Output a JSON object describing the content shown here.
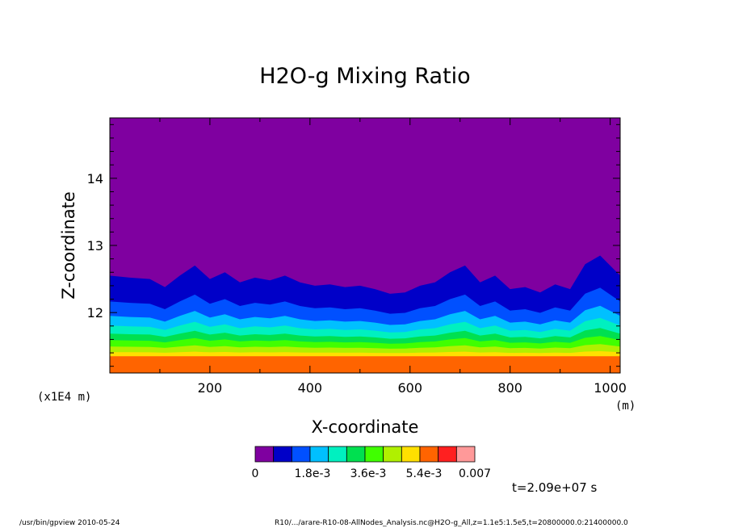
{
  "chart_data": {
    "type": "heatmap",
    "title": "H2O-g Mixing Ratio",
    "xlabel": "X-coordinate",
    "ylabel": "Z-coordinate",
    "x_unit": "(m)",
    "y_unit": "(x1E4 m)",
    "xlim": [
      0,
      1020
    ],
    "ylim": [
      11.1,
      14.9
    ],
    "x_ticks": [
      200,
      400,
      600,
      800,
      1000
    ],
    "y_ticks": [
      12,
      13,
      14
    ],
    "colorbar": {
      "colors": [
        "#7f00a0",
        "#0000c8",
        "#0050ff",
        "#00c0ff",
        "#00f0c0",
        "#00e050",
        "#40ff00",
        "#b0f000",
        "#ffe000",
        "#ff6400",
        "#ff2020",
        "#ff9999"
      ],
      "tick_labels": [
        "0",
        "1.8e-3",
        "3.6e-3",
        "5.4e-3",
        "0.007"
      ]
    },
    "profile_x": [
      0,
      40,
      80,
      110,
      140,
      170,
      200,
      230,
      260,
      290,
      320,
      350,
      380,
      410,
      440,
      470,
      500,
      530,
      560,
      590,
      620,
      650,
      680,
      710,
      740,
      770,
      800,
      830,
      860,
      890,
      920,
      950,
      980,
      1020
    ],
    "top_boundary_z": [
      12.55,
      12.52,
      12.5,
      12.38,
      12.55,
      12.7,
      12.5,
      12.6,
      12.45,
      12.52,
      12.48,
      12.55,
      12.45,
      12.4,
      12.42,
      12.38,
      12.4,
      12.35,
      12.28,
      12.3,
      12.4,
      12.45,
      12.6,
      12.7,
      12.45,
      12.55,
      12.35,
      12.38,
      12.3,
      12.42,
      12.35,
      12.72,
      12.85,
      12.55
    ],
    "band_levels_z": [
      0.0,
      0.32,
      0.5,
      0.62,
      0.72,
      0.8,
      0.88,
      0.95,
      1.0
    ],
    "band_bottom_z": 11.35
  },
  "time_label": "t=2.09e+07 s",
  "footer": {
    "left": "/usr/bin/gpview   2010-05-24",
    "right": "R10/.../arare-R10-08-AllNodes_Analysis.nc@H2O-g_All,z=1.1e5:1.5e5,t=20800000.0:21400000.0"
  }
}
